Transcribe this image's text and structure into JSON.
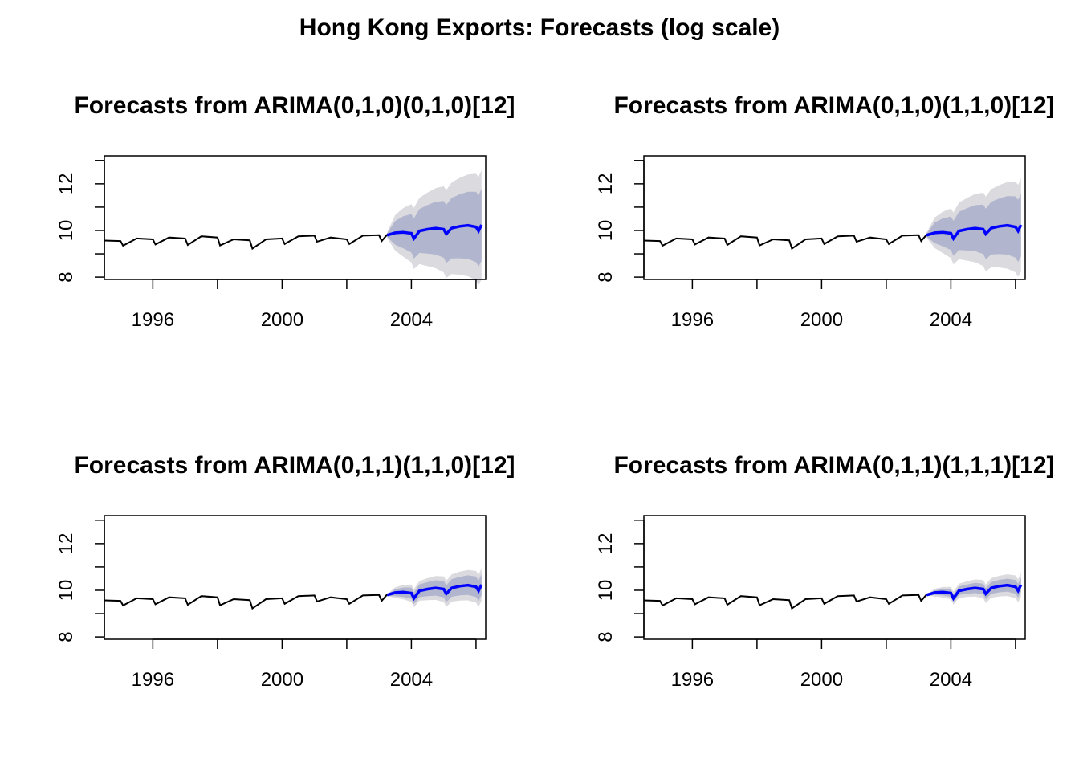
{
  "figure": {
    "title": "Hong Kong Exports: Forecasts (log scale)"
  },
  "chart_data": [
    {
      "type": "line",
      "title": "Forecasts from ARIMA(0,1,0)(0,1,0)[12]",
      "xlim": [
        1994.5,
        2006.3
      ],
      "ylim": [
        7.9,
        13.2
      ],
      "xticks": [
        1996,
        1998,
        2000,
        2002,
        2004,
        2006
      ],
      "xtick_labels": [
        "1996",
        "",
        "2000",
        "",
        "2004",
        ""
      ],
      "yticks": [
        8,
        9,
        10,
        11,
        12,
        13
      ],
      "ytick_labels": [
        "8",
        "",
        "10",
        "",
        "12",
        ""
      ],
      "grid": false,
      "legend": "none",
      "colors": {
        "history": "#000000",
        "forecast": "#0000ff",
        "pi80": "#b1b5ce",
        "pi95": "#dbdbdf"
      },
      "forecast_start": 2003.25,
      "forecast_end": 2006.17,
      "band_width_80_at_end": 1.55,
      "band_width_95_at_end": 2.35
    },
    {
      "type": "line",
      "title": "Forecasts from ARIMA(0,1,0)(1,1,0)[12]",
      "xlim": [
        1994.5,
        2006.3
      ],
      "ylim": [
        7.9,
        13.2
      ],
      "xticks": [
        1996,
        1998,
        2000,
        2002,
        2004,
        2006
      ],
      "xtick_labels": [
        "1996",
        "",
        "2000",
        "",
        "2004",
        ""
      ],
      "yticks": [
        8,
        9,
        10,
        11,
        12,
        13
      ],
      "ytick_labels": [
        "8",
        "",
        "10",
        "",
        "12",
        ""
      ],
      "grid": false,
      "legend": "none",
      "colors": {
        "history": "#000000",
        "forecast": "#0000ff",
        "pi80": "#b1b5ce",
        "pi95": "#dbdbdf"
      },
      "forecast_start": 2003.25,
      "forecast_end": 2006.17,
      "band_width_80_at_end": 1.35,
      "band_width_95_at_end": 2.0
    },
    {
      "type": "line",
      "title": "Forecasts from ARIMA(0,1,1)(1,1,0)[12]",
      "xlim": [
        1994.5,
        2006.3
      ],
      "ylim": [
        7.9,
        13.2
      ],
      "xticks": [
        1996,
        1998,
        2000,
        2002,
        2004,
        2006
      ],
      "xtick_labels": [
        "1996",
        "",
        "2000",
        "",
        "2004",
        ""
      ],
      "yticks": [
        8,
        9,
        10,
        11,
        12,
        13
      ],
      "ytick_labels": [
        "8",
        "",
        "10",
        "",
        "12",
        ""
      ],
      "grid": false,
      "legend": "none",
      "colors": {
        "history": "#000000",
        "forecast": "#0000ff",
        "pi80": "#b1b5ce",
        "pi95": "#dbdbdf"
      },
      "forecast_start": 2003.25,
      "forecast_end": 2006.17,
      "band_width_80_at_end": 0.45,
      "band_width_95_at_end": 0.7
    },
    {
      "type": "line",
      "title": "Forecasts from ARIMA(0,1,1)(1,1,1)[12]",
      "xlim": [
        1994.5,
        2006.3
      ],
      "ylim": [
        7.9,
        13.2
      ],
      "xticks": [
        1996,
        1998,
        2000,
        2002,
        2004,
        2006
      ],
      "xtick_labels": [
        "1996",
        "",
        "2000",
        "",
        "2004",
        ""
      ],
      "yticks": [
        8,
        9,
        10,
        11,
        12,
        13
      ],
      "ytick_labels": [
        "8",
        "",
        "10",
        "",
        "12",
        ""
      ],
      "grid": false,
      "legend": "none",
      "colors": {
        "history": "#000000",
        "forecast": "#0000ff",
        "pi80": "#b1b5ce",
        "pi95": "#dbdbdf"
      },
      "forecast_start": 2003.25,
      "forecast_end": 2006.17,
      "band_width_80_at_end": 0.3,
      "band_width_95_at_end": 0.5
    }
  ],
  "series_shared": {
    "history": {
      "x": [
        1994.5,
        1995.0,
        1995.08,
        1995.5,
        1996.0,
        1996.08,
        1996.5,
        1997.0,
        1997.08,
        1997.5,
        1998.0,
        1998.08,
        1998.5,
        1999.0,
        1999.08,
        1999.5,
        2000.0,
        2000.08,
        2000.5,
        2001.0,
        2001.08,
        2001.5,
        2002.0,
        2002.08,
        2002.5,
        2003.0,
        2003.08,
        2003.25
      ],
      "y": [
        9.57,
        9.55,
        9.35,
        9.66,
        9.62,
        9.4,
        9.7,
        9.66,
        9.38,
        9.75,
        9.7,
        9.36,
        9.62,
        9.58,
        9.22,
        9.62,
        9.66,
        9.42,
        9.75,
        9.78,
        9.52,
        9.7,
        9.62,
        9.42,
        9.78,
        9.8,
        9.55,
        9.82
      ]
    },
    "forecast": {
      "x": [
        2003.25,
        2003.5,
        2003.75,
        2004.0,
        2004.08,
        2004.25,
        2004.5,
        2004.75,
        2005.0,
        2005.08,
        2005.25,
        2005.5,
        2005.75,
        2006.0,
        2006.08,
        2006.17
      ],
      "y": [
        9.8,
        9.9,
        9.92,
        9.88,
        9.66,
        9.98,
        10.05,
        10.1,
        10.05,
        9.85,
        10.1,
        10.18,
        10.22,
        10.15,
        9.98,
        10.24
      ]
    }
  }
}
